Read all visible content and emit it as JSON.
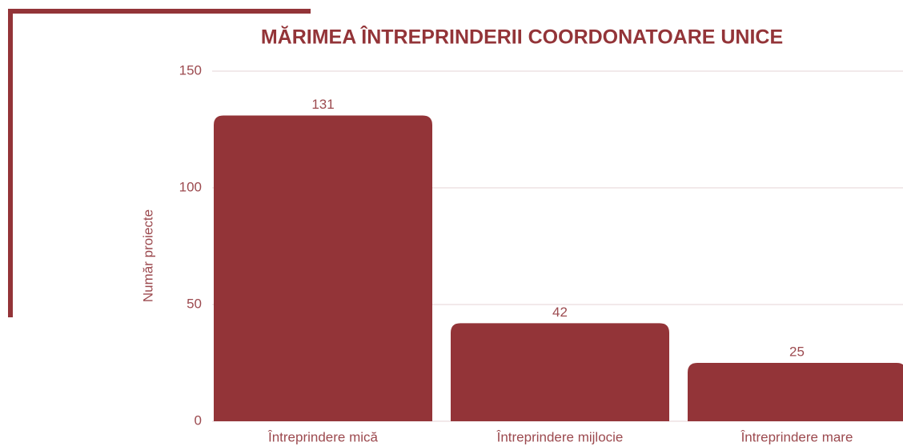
{
  "chart_data": {
    "type": "bar",
    "title": "MĂRIMEA ÎNTREPRINDERII COORDONATOARE UNICE",
    "y_label": "Număr proiecte",
    "categories": [
      "Întreprindere mică",
      "Întreprindere mijlocie",
      "Întreprindere mare"
    ],
    "values": [
      131,
      42,
      25
    ],
    "color": "#933438",
    "ylim": [
      0,
      150
    ],
    "yticks": [
      0,
      50,
      100,
      150
    ],
    "grid": true
  }
}
